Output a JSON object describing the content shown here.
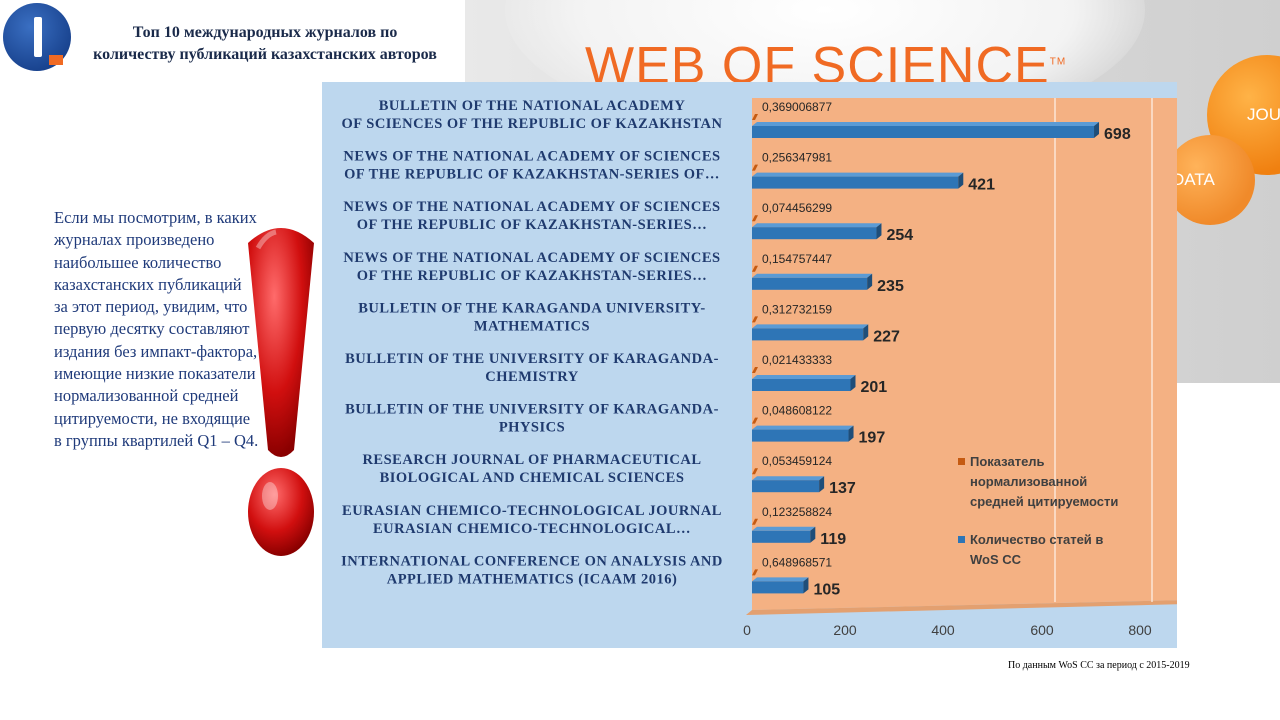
{
  "page": {
    "title": "Топ 10 международных журналов по количеству публикаций казахстанских авторов",
    "side_text": "Если мы посмотрим, в каких журналах произведено наибольшее количество казахстанских публикаций за этот период, увидим, что первую десятку составляют издания без импакт-фактора, имеющие низкие показатели нормализованной средней цитируемости, не входящие в группы квартилей  Q1 – Q4.",
    "footnote": "По данным  WoS CC за период с 2015-2019",
    "banner_text": "WEB OF SCIENCE",
    "banner_tm": "TM",
    "circle_labels": [
      "JOUR",
      "DATA"
    ]
  },
  "colors": {
    "bar_blue": "#2e75b6",
    "bar_orange": "#c55a11",
    "plot_bg": "#f4b183",
    "panel_bg": "#bdd7ee",
    "brand_orange": "#f06a23"
  },
  "chart_data": {
    "type": "bar",
    "orientation": "horizontal",
    "categories": [
      [
        "BULLETIN OF THE NATIONAL ACADEMY",
        "OF SCIENCES OF THE REPUBLIC OF KAZAKHSTAN"
      ],
      [
        "NEWS OF THE NATIONAL ACADEMY OF SCIENCES",
        "OF THE REPUBLIC OF KAZAKHSTAN-SERIES OF…"
      ],
      [
        "NEWS OF THE NATIONAL ACADEMY OF SCIENCES",
        "OF THE REPUBLIC OF KAZAKHSTAN-SERIES…"
      ],
      [
        "NEWS OF THE NATIONAL ACADEMY OF SCIENCES",
        "OF THE REPUBLIC OF KAZAKHSTAN-SERIES…"
      ],
      [
        "BULLETIN OF THE KARAGANDA UNIVERSITY-",
        "MATHEMATICS"
      ],
      [
        "BULLETIN OF THE UNIVERSITY OF KARAGANDA-",
        "CHEMISTRY"
      ],
      [
        "BULLETIN OF THE UNIVERSITY OF KARAGANDA-",
        "PHYSICS"
      ],
      [
        "RESEARCH JOURNAL OF PHARMACEUTICAL",
        "BIOLOGICAL AND CHEMICAL SCIENCES"
      ],
      [
        "EURASIAN CHEMICO-TECHNOLOGICAL JOURNAL",
        "EURASIAN CHEMICO-TECHNOLOGICAL…"
      ],
      [
        "INTERNATIONAL CONFERENCE ON ANALYSIS AND",
        "APPLIED MATHEMATICS (ICAAM 2016)"
      ]
    ],
    "series": [
      {
        "name": "Показатель нормализованной средней цитируемости",
        "color": "#c55a11",
        "values": [
          0.369006877,
          0.256347981,
          0.074456299,
          0.154757447,
          0.312732159,
          0.021433333,
          0.048608122,
          0.053459124,
          0.123258824,
          0.648968571
        ],
        "labels": [
          "0,369006877",
          "0,256347981",
          "0,074456299",
          "0,154757447",
          "0,312732159",
          "0,021433333",
          "0,048608122",
          "0,053459124",
          "0,123258824",
          "0,648968571"
        ]
      },
      {
        "name": "Количество статей в WoS CC",
        "color": "#2e75b6",
        "values": [
          698,
          421,
          254,
          235,
          227,
          201,
          197,
          137,
          119,
          105
        ],
        "labels": [
          "698",
          "421",
          "254",
          "235",
          "227",
          "201",
          "197",
          "137",
          "119",
          "105"
        ]
      }
    ],
    "xlim": [
      0,
      800
    ],
    "xticks": [
      "0",
      "200",
      "400",
      "600",
      "800"
    ],
    "grid": true,
    "legend_position": "right",
    "legend": [
      "Показатель нормализованной средней цитируемости",
      "Количество статей в WoS CC"
    ]
  }
}
